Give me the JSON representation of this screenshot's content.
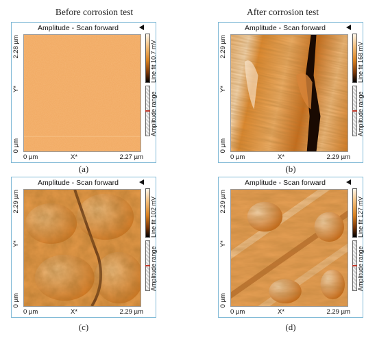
{
  "headers": {
    "left": "Before corrosion test",
    "right": "After corrosion test"
  },
  "panels": [
    {
      "title": "Amplitude - Scan forward",
      "y_top": "2.28 µm",
      "y_label": "Y*",
      "y_bottom": "0 µm",
      "x_left": "0 µm",
      "x_label": "X*",
      "x_right": "2.27 µm",
      "colorbar": "Line fit 10.7 mV",
      "range": "Amplitude range",
      "caption": "(a)"
    },
    {
      "title": "Amplitude - Scan forward",
      "y_top": "2.29 µm",
      "y_label": "Y*",
      "y_bottom": "0 µm",
      "x_left": "0 µm",
      "x_label": "X*",
      "x_right": "2.29 µm",
      "colorbar": "Line fit 168 mV",
      "range": "Amplitude range",
      "caption": "(b)"
    },
    {
      "title": "Amplitude - Scan forward",
      "y_top": "2.29 µm",
      "y_label": "Y*",
      "y_bottom": "0 µm",
      "x_left": "0 µm",
      "x_label": "X*",
      "x_right": "2.29 µm",
      "colorbar": "Line fit 102 mV",
      "range": "Amplitude range",
      "caption": "(c)"
    },
    {
      "title": "Amplitude - Scan forward",
      "y_top": "2.29 µm",
      "y_label": "Y*",
      "y_bottom": "0 µm",
      "x_left": "0 µm",
      "x_label": "X*",
      "x_right": "2.29 µm",
      "colorbar": "Line fit 127 mV",
      "range": "Amplitude range",
      "caption": "(d)"
    }
  ],
  "colors": {
    "panel_border": "#7fb9d6",
    "afm_light": "#fbe3c4",
    "afm_mid": "#e39a4a",
    "afm_dark": "#6b2f05"
  }
}
